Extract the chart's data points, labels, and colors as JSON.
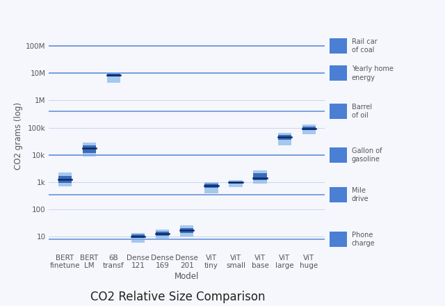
{
  "models": [
    "BERT\nfinetune",
    "BERT\nLM",
    "6B\ntransf",
    "Dense\n121",
    "Dense\n169",
    "Dense\n201",
    "ViT\ntiny",
    "ViT\nsmall",
    "ViT\nbase",
    "ViT\nlarge",
    "ViT\nhuge"
  ],
  "box_low": [
    700,
    9000,
    4500000,
    6,
    8,
    10,
    380,
    650,
    900,
    22000,
    58000
  ],
  "box_q1": [
    950,
    12000,
    7500000,
    9,
    11,
    14,
    620,
    880,
    1200,
    36000,
    80000
  ],
  "box_median": [
    1300,
    18000,
    8800000,
    10,
    13,
    17,
    760,
    980,
    1450,
    46000,
    95000
  ],
  "box_q3": [
    1700,
    22000,
    9500000,
    12,
    15,
    21,
    880,
    1080,
    2100,
    56000,
    108000
  ],
  "box_high": [
    2300,
    28000,
    10800000,
    14,
    18,
    26,
    980,
    1200,
    2700,
    66000,
    128000
  ],
  "reference_lines": {
    "Rail car\nof coal": 100000000,
    "Yearly home\nenergy": 10000000,
    "Barrel\nof oil": 400000,
    "Gallon of\ngasoline": 10000,
    "Mile\ndrive": 350,
    "Phone\ncharge": 8
  },
  "ref_line_color": "#4a7fd4",
  "box_light_color": "#7ab0e8",
  "box_dark_color": "#2255a8",
  "median_color": "#0a2a6e",
  "bg_color": "#f5f7fc",
  "grid_color": "#c8d4ee",
  "title": "CO2 Relative Size Comparison",
  "xlabel": "Model",
  "ylabel": "CO2 grams (log)",
  "ylim_min": 3,
  "ylim_max": 800000000,
  "title_fontsize": 12,
  "label_fontsize": 8.5,
  "tick_fontsize": 7.5,
  "ref_fontsize": 7
}
